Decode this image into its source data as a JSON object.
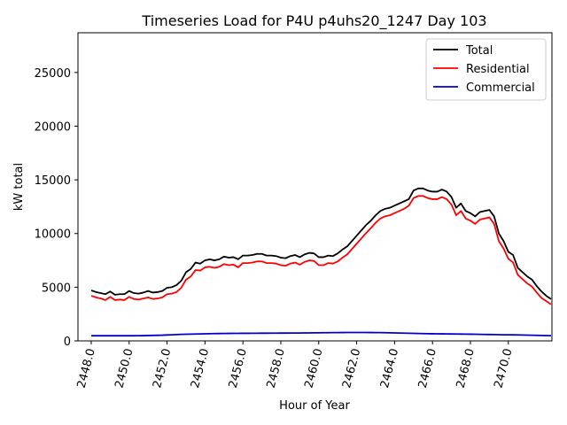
{
  "chart_data": {
    "type": "line",
    "title": "Timeseries Load for P4U p4uhs20_1247  Day 103",
    "xlabel": "Hour of Year",
    "ylabel": "kW total",
    "xlim": [
      2447.3,
      2472.3
    ],
    "ylim": [
      0,
      28700
    ],
    "xticks": [
      2448,
      2450,
      2452,
      2454,
      2456,
      2458,
      2460,
      2462,
      2464,
      2466,
      2468,
      2470
    ],
    "xtick_labels": [
      "2448.0",
      "2450.0",
      "2452.0",
      "2454.0",
      "2456.0",
      "2458.0",
      "2460.0",
      "2462.0",
      "2464.0",
      "2466.0",
      "2468.0",
      "2470.0"
    ],
    "yticks": [
      0,
      5000,
      10000,
      15000,
      20000,
      25000
    ],
    "ytick_labels": [
      "0",
      "5000",
      "10000",
      "15000",
      "20000",
      "25000"
    ],
    "legend_position": "upper right",
    "x_start": 2448.0,
    "x_step": 0.25,
    "series": [
      {
        "name": "Total",
        "color": "#000000",
        "values": [
          4700,
          4550,
          4450,
          4350,
          4600,
          4300,
          4350,
          4350,
          4650,
          4450,
          4400,
          4500,
          4650,
          4500,
          4550,
          4650,
          4950,
          5000,
          5200,
          5600,
          6400,
          6700,
          7300,
          7200,
          7500,
          7600,
          7500,
          7600,
          7850,
          7750,
          7800,
          7600,
          7950,
          7950,
          8000,
          8100,
          8100,
          7950,
          7950,
          7900,
          7750,
          7700,
          7900,
          8000,
          7800,
          8050,
          8200,
          8150,
          7800,
          7800,
          7950,
          7900,
          8150,
          8500,
          8800,
          9300,
          9800,
          10300,
          10800,
          11200,
          11700,
          12100,
          12300,
          12400,
          12600,
          12800,
          13000,
          13200,
          14000,
          14200,
          14200,
          14000,
          13900,
          13900,
          14100,
          13900,
          13400,
          12400,
          12800,
          12100,
          11900,
          11600,
          12000,
          12100,
          12200,
          11600,
          10000,
          9300,
          8300,
          8000,
          6800,
          6400,
          6000,
          5700,
          5100,
          4600,
          4200,
          3900
        ]
      },
      {
        "name": "Residential",
        "color": "#ff0000",
        "values": [
          4200,
          4050,
          3950,
          3800,
          4100,
          3800,
          3850,
          3800,
          4100,
          3900,
          3850,
          3950,
          4050,
          3900,
          3950,
          4050,
          4350,
          4400,
          4550,
          4950,
          5700,
          6000,
          6600,
          6550,
          6850,
          6900,
          6800,
          6900,
          7150,
          7050,
          7100,
          6850,
          7250,
          7250,
          7300,
          7400,
          7400,
          7250,
          7250,
          7200,
          7050,
          7000,
          7200,
          7300,
          7100,
          7350,
          7500,
          7450,
          7050,
          7050,
          7250,
          7200,
          7400,
          7750,
          8050,
          8550,
          9050,
          9550,
          10050,
          10500,
          11000,
          11400,
          11600,
          11700,
          11900,
          12100,
          12300,
          12600,
          13300,
          13500,
          13500,
          13300,
          13200,
          13200,
          13400,
          13200,
          12700,
          11700,
          12100,
          11400,
          11200,
          10900,
          11300,
          11400,
          11500,
          10900,
          9300,
          8600,
          7650,
          7300,
          6150,
          5750,
          5350,
          5050,
          4500,
          4000,
          3700,
          3400
        ]
      },
      {
        "name": "Commercial",
        "color": "#0000cc",
        "values": [
          480,
          480,
          480,
          480,
          480,
          480,
          480,
          480,
          480,
          480,
          485,
          490,
          500,
          510,
          520,
          530,
          550,
          570,
          590,
          610,
          620,
          630,
          640,
          650,
          660,
          670,
          680,
          685,
          690,
          695,
          700,
          700,
          705,
          705,
          710,
          710,
          715,
          715,
          720,
          720,
          725,
          725,
          730,
          730,
          735,
          740,
          745,
          750,
          755,
          760,
          765,
          770,
          775,
          780,
          785,
          785,
          785,
          785,
          785,
          780,
          775,
          770,
          760,
          750,
          740,
          730,
          720,
          710,
          700,
          690,
          680,
          670,
          665,
          660,
          655,
          650,
          645,
          640,
          635,
          630,
          625,
          620,
          610,
          600,
          595,
          590,
          580,
          570,
          565,
          560,
          555,
          545,
          535,
          525,
          515,
          505,
          495,
          485
        ]
      }
    ]
  }
}
